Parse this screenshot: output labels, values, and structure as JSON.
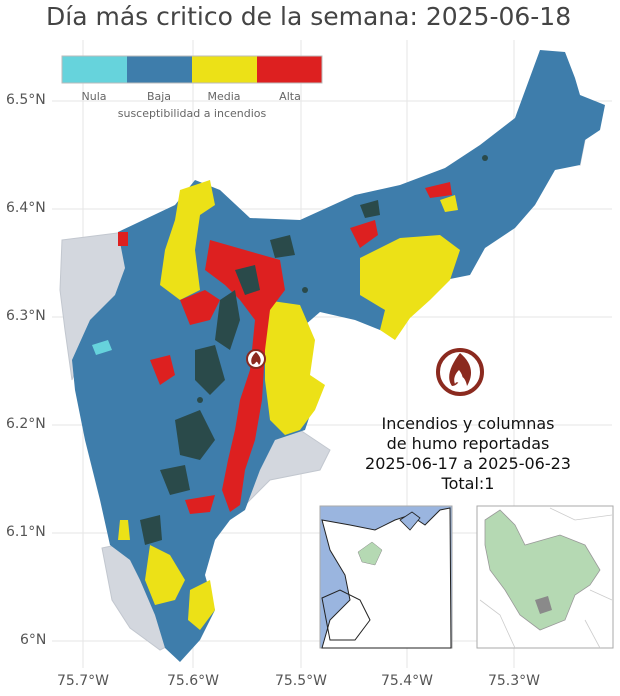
{
  "title": "Día más critico de la semana: 2025-06-18",
  "legend": {
    "title": "susceptibilidad a incendios",
    "categories": [
      {
        "label": "Nula",
        "color": "#66d3dc"
      },
      {
        "label": "Baja",
        "color": "#3e7dab"
      },
      {
        "label": "Media",
        "color": "#ece117"
      },
      {
        "label": "Alta",
        "color": "#dd2020"
      }
    ]
  },
  "axes": {
    "lat_labels": [
      "6.5°N",
      "6.4°N",
      "6.3°N",
      "6.2°N",
      "6.1°N",
      "6°N"
    ],
    "lon_labels": [
      "75.7°W",
      "75.6°W",
      "75.5°W",
      "75.4°W",
      "75.3°W"
    ]
  },
  "fire_info": {
    "line1": "Incendios y columnas",
    "line2": "de humo reportadas",
    "line3": "2025-06-17 a 2025-06-23",
    "line4": "Total:1"
  },
  "fire_count": 1,
  "colors": {
    "outside_region": "#d3d7de",
    "forest_patches": "#2a4a4a",
    "fire_icon": "#8b2a1f",
    "inset_sea": "#9ab5df",
    "inset_region": "#b5d9b3"
  }
}
